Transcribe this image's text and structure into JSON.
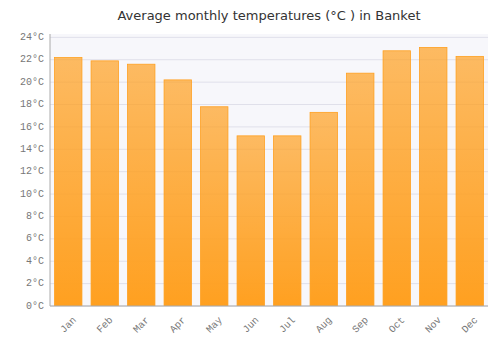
{
  "chart_data": {
    "type": "bar",
    "title": "Average monthly temperatures (°C ) in Banket",
    "categories": [
      "Jan",
      "Feb",
      "Mar",
      "Apr",
      "May",
      "Jun",
      "Jul",
      "Aug",
      "Sep",
      "Oct",
      "Nov",
      "Dec"
    ],
    "values": [
      22.2,
      21.9,
      21.6,
      20.2,
      17.8,
      15.2,
      15.2,
      17.3,
      20.8,
      22.8,
      23.1,
      22.3
    ],
    "color": "#FFA020",
    "ylim": [
      0,
      24.3
    ],
    "yticks": [
      {
        "value": 0,
        "label": "0°C"
      },
      {
        "value": 2,
        "label": "2°C"
      },
      {
        "value": 4,
        "label": "4°C"
      },
      {
        "value": 6,
        "label": "6°C"
      },
      {
        "value": 8,
        "label": "8°C"
      },
      {
        "value": 10,
        "label": "10°C"
      },
      {
        "value": 12,
        "label": "12°C"
      },
      {
        "value": 14,
        "label": "14°C"
      },
      {
        "value": 16,
        "label": "16°C"
      },
      {
        "value": 18,
        "label": "18°C"
      },
      {
        "value": 20,
        "label": "20°C"
      },
      {
        "value": 22,
        "label": "22°C"
      },
      {
        "value": 24,
        "label": "24°C"
      }
    ],
    "grid": true
  }
}
